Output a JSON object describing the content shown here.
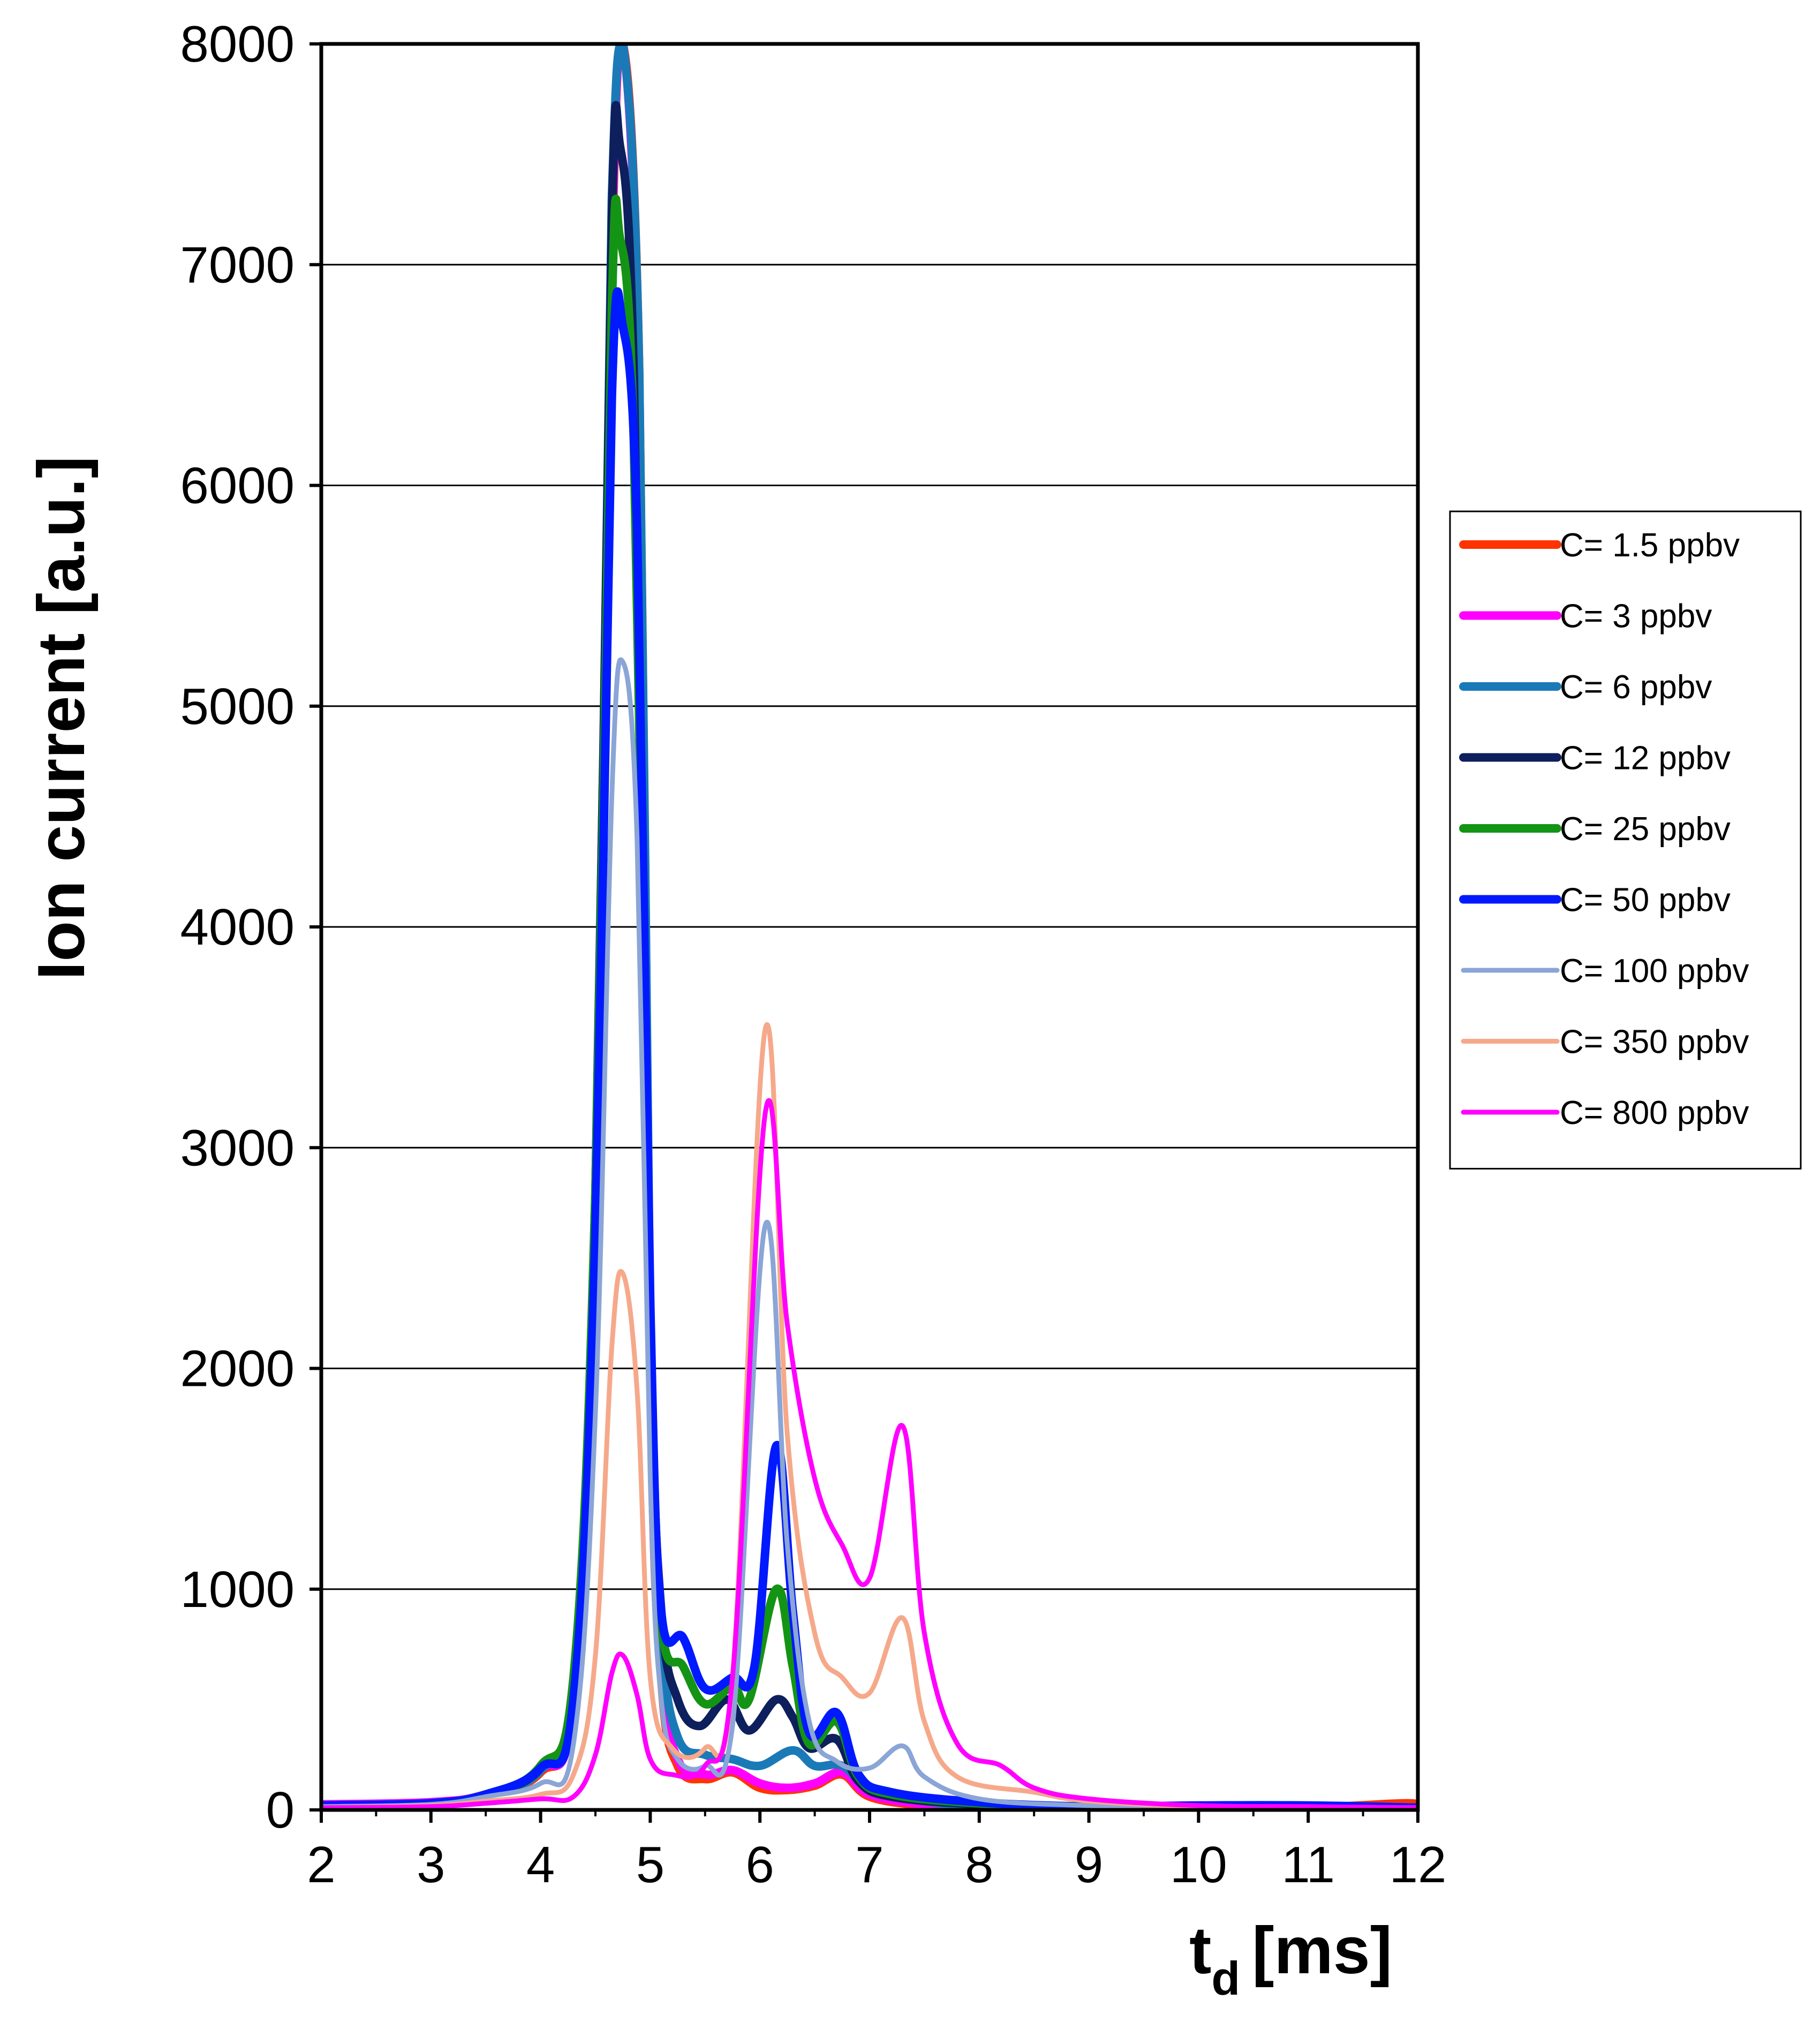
{
  "chart_data": {
    "type": "line",
    "xlabel": "t",
    "xlabel_subscript": "d",
    "xlabel_unit": "[ms]",
    "ylabel": "Ion current [a.u.]",
    "xlim": [
      2,
      12
    ],
    "ylim": [
      0,
      8000
    ],
    "x_ticks": [
      "2",
      "3",
      "4",
      "5",
      "6",
      "7",
      "8",
      "9",
      "10",
      "11",
      "12"
    ],
    "y_ticks": [
      "0",
      "1000",
      "2000",
      "3000",
      "4000",
      "5000",
      "6000",
      "7000",
      "8000"
    ],
    "grid": "horizontal",
    "legend_position": "right",
    "series": [
      {
        "name": "C= 1.5 ppbv",
        "color": "#ff3300",
        "width": "thick",
        "points": [
          [
            2,
            20
          ],
          [
            3,
            30
          ],
          [
            3.5,
            70
          ],
          [
            4,
            170
          ],
          [
            4.3,
            500
          ],
          [
            4.5,
            2500
          ],
          [
            4.65,
            7000
          ],
          [
            4.75,
            8000
          ],
          [
            4.9,
            6500
          ],
          [
            5,
            2000
          ],
          [
            5.1,
            600
          ],
          [
            5.25,
            200
          ],
          [
            5.5,
            140
          ],
          [
            5.75,
            170
          ],
          [
            6,
            100
          ],
          [
            6.25,
            90
          ],
          [
            6.5,
            110
          ],
          [
            6.75,
            160
          ],
          [
            7,
            60
          ],
          [
            7.5,
            20
          ],
          [
            8,
            10
          ],
          [
            9,
            10
          ],
          [
            10,
            10
          ],
          [
            11,
            10
          ],
          [
            11.9,
            30
          ],
          [
            12,
            10
          ]
        ]
      },
      {
        "name": "C= 3 ppbv",
        "color": "#ff00ff",
        "width": "thick",
        "points": [
          [
            2,
            25
          ],
          [
            3,
            35
          ],
          [
            3.5,
            70
          ],
          [
            4,
            180
          ],
          [
            4.3,
            500
          ],
          [
            4.5,
            2600
          ],
          [
            4.65,
            7100
          ],
          [
            4.75,
            8000
          ],
          [
            4.9,
            6400
          ],
          [
            5,
            2000
          ],
          [
            5.1,
            650
          ],
          [
            5.25,
            230
          ],
          [
            5.5,
            160
          ],
          [
            5.75,
            180
          ],
          [
            6,
            120
          ],
          [
            6.25,
            100
          ],
          [
            6.5,
            120
          ],
          [
            6.75,
            170
          ],
          [
            7,
            70
          ],
          [
            7.5,
            25
          ],
          [
            8,
            15
          ],
          [
            9,
            10
          ],
          [
            10,
            10
          ],
          [
            11,
            10
          ],
          [
            12,
            10
          ]
        ]
      },
      {
        "name": "C= 6 ppbv",
        "color": "#1a7ab8",
        "width": "thick",
        "points": [
          [
            2,
            20
          ],
          [
            3,
            30
          ],
          [
            3.5,
            70
          ],
          [
            4,
            180
          ],
          [
            4.3,
            550
          ],
          [
            4.5,
            2700
          ],
          [
            4.65,
            7300
          ],
          [
            4.75,
            8000
          ],
          [
            4.9,
            6500
          ],
          [
            5,
            2100
          ],
          [
            5.1,
            800
          ],
          [
            5.25,
            330
          ],
          [
            5.5,
            250
          ],
          [
            5.75,
            230
          ],
          [
            6,
            200
          ],
          [
            6.3,
            270
          ],
          [
            6.5,
            200
          ],
          [
            6.75,
            200
          ],
          [
            7,
            100
          ],
          [
            7.5,
            40
          ],
          [
            8,
            20
          ],
          [
            9,
            10
          ],
          [
            10,
            10
          ],
          [
            11,
            10
          ],
          [
            12,
            10
          ]
        ]
      },
      {
        "name": "C= 12 ppbv",
        "color": "#0d1f5c",
        "width": "thick",
        "points": [
          [
            2,
            20
          ],
          [
            3,
            30
          ],
          [
            3.5,
            70
          ],
          [
            4,
            190
          ],
          [
            4.3,
            550
          ],
          [
            4.5,
            2800
          ],
          [
            4.65,
            7200
          ],
          [
            4.72,
            7550
          ],
          [
            4.85,
            6500
          ],
          [
            5,
            2200
          ],
          [
            5.1,
            900
          ],
          [
            5.25,
            500
          ],
          [
            5.45,
            380
          ],
          [
            5.7,
            500
          ],
          [
            5.9,
            360
          ],
          [
            6.15,
            500
          ],
          [
            6.3,
            420
          ],
          [
            6.45,
            280
          ],
          [
            6.7,
            320
          ],
          [
            6.9,
            130
          ],
          [
            7.2,
            60
          ],
          [
            8,
            25
          ],
          [
            9,
            10
          ],
          [
            10,
            10
          ],
          [
            11,
            10
          ],
          [
            12,
            10
          ]
        ]
      },
      {
        "name": "C= 25 ppbv",
        "color": "#149414",
        "width": "thick",
        "points": [
          [
            2,
            20
          ],
          [
            3,
            30
          ],
          [
            3.5,
            70
          ],
          [
            4,
            200
          ],
          [
            4.3,
            600
          ],
          [
            4.5,
            2800
          ],
          [
            4.65,
            6800
          ],
          [
            4.72,
            7130
          ],
          [
            4.85,
            6200
          ],
          [
            5,
            2200
          ],
          [
            5.1,
            850
          ],
          [
            5.3,
            650
          ],
          [
            5.5,
            480
          ],
          [
            5.75,
            560
          ],
          [
            5.9,
            500
          ],
          [
            6.15,
            1000
          ],
          [
            6.3,
            650
          ],
          [
            6.45,
            300
          ],
          [
            6.7,
            400
          ],
          [
            6.9,
            150
          ],
          [
            7.2,
            70
          ],
          [
            8,
            30
          ],
          [
            9,
            15
          ],
          [
            10,
            10
          ],
          [
            11,
            10
          ],
          [
            12,
            10
          ]
        ]
      },
      {
        "name": "C= 50 ppbv",
        "color": "#0019ff",
        "width": "thick",
        "points": [
          [
            2,
            20
          ],
          [
            3,
            30
          ],
          [
            3.5,
            70
          ],
          [
            4,
            190
          ],
          [
            4.3,
            500
          ],
          [
            4.5,
            2600
          ],
          [
            4.65,
            6400
          ],
          [
            4.75,
            6720
          ],
          [
            4.88,
            5800
          ],
          [
            5,
            2300
          ],
          [
            5.1,
            900
          ],
          [
            5.3,
            780
          ],
          [
            5.5,
            550
          ],
          [
            5.75,
            600
          ],
          [
            5.95,
            650
          ],
          [
            6.15,
            1650
          ],
          [
            6.3,
            900
          ],
          [
            6.45,
            350
          ],
          [
            6.7,
            440
          ],
          [
            6.9,
            160
          ],
          [
            7.2,
            80
          ],
          [
            8,
            35
          ],
          [
            9,
            15
          ],
          [
            10,
            20
          ],
          [
            11,
            20
          ],
          [
            12,
            10
          ]
        ]
      },
      {
        "name": "C= 100 ppbv",
        "color": "#8aa5d6",
        "width": "thin",
        "points": [
          [
            2,
            15
          ],
          [
            3,
            25
          ],
          [
            3.5,
            60
          ],
          [
            4,
            120
          ],
          [
            4.3,
            300
          ],
          [
            4.5,
            1800
          ],
          [
            4.65,
            4600
          ],
          [
            4.75,
            5200
          ],
          [
            4.88,
            4400
          ],
          [
            5,
            1500
          ],
          [
            5.1,
            500
          ],
          [
            5.25,
            230
          ],
          [
            5.5,
            200
          ],
          [
            5.75,
            380
          ],
          [
            6.05,
            2650
          ],
          [
            6.25,
            1200
          ],
          [
            6.45,
            400
          ],
          [
            6.7,
            220
          ],
          [
            7,
            190
          ],
          [
            7.3,
            290
          ],
          [
            7.5,
            150
          ],
          [
            8,
            50
          ],
          [
            9,
            20
          ],
          [
            10,
            15
          ],
          [
            11,
            10
          ],
          [
            12,
            10
          ]
        ]
      },
      {
        "name": "C= 350 ppbv",
        "color": "#f5a98a",
        "width": "thin",
        "points": [
          [
            2,
            10
          ],
          [
            3,
            20
          ],
          [
            3.5,
            40
          ],
          [
            4,
            70
          ],
          [
            4.3,
            160
          ],
          [
            4.5,
            700
          ],
          [
            4.65,
            2100
          ],
          [
            4.75,
            2430
          ],
          [
            4.88,
            1900
          ],
          [
            5,
            600
          ],
          [
            5.2,
            280
          ],
          [
            5.5,
            280
          ],
          [
            5.75,
            600
          ],
          [
            6.05,
            3540
          ],
          [
            6.25,
            1700
          ],
          [
            6.5,
            800
          ],
          [
            6.75,
            600
          ],
          [
            7,
            530
          ],
          [
            7.3,
            870
          ],
          [
            7.5,
            400
          ],
          [
            7.8,
            150
          ],
          [
            8.5,
            80
          ],
          [
            9,
            40
          ],
          [
            10,
            15
          ],
          [
            11,
            10
          ],
          [
            12,
            10
          ]
        ]
      },
      {
        "name": "C= 800 ppbv",
        "color": "#ff00ff",
        "width": "thin",
        "points": [
          [
            2,
            10
          ],
          [
            3,
            15
          ],
          [
            3.5,
            30
          ],
          [
            4,
            50
          ],
          [
            4.3,
            60
          ],
          [
            4.5,
            250
          ],
          [
            4.65,
            620
          ],
          [
            4.75,
            700
          ],
          [
            4.88,
            520
          ],
          [
            5,
            230
          ],
          [
            5.2,
            160
          ],
          [
            5.5,
            200
          ],
          [
            5.75,
            600
          ],
          [
            6.05,
            3160
          ],
          [
            6.25,
            2200
          ],
          [
            6.5,
            1500
          ],
          [
            6.75,
            1200
          ],
          [
            7,
            1050
          ],
          [
            7.3,
            1740
          ],
          [
            7.5,
            800
          ],
          [
            7.8,
            300
          ],
          [
            8.2,
            200
          ],
          [
            8.5,
            100
          ],
          [
            9,
            50
          ],
          [
            10,
            20
          ],
          [
            11,
            15
          ],
          [
            12,
            10
          ]
        ]
      }
    ]
  }
}
